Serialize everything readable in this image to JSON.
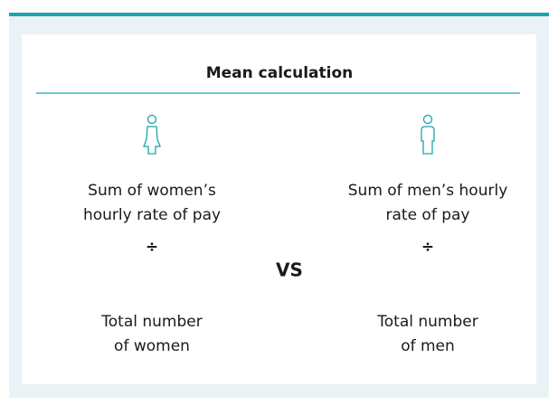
{
  "title": "Mean calculation",
  "left": {
    "numerator": [
      "Sum of women’s",
      "hourly rate of pay"
    ],
    "operator": "÷",
    "denominator": [
      "Total number",
      "of women"
    ]
  },
  "right": {
    "numerator": [
      "Sum of men’s hourly",
      "rate of pay"
    ],
    "operator": "÷",
    "denominator": [
      "Total number",
      "of men"
    ]
  },
  "comparison": "VS"
}
